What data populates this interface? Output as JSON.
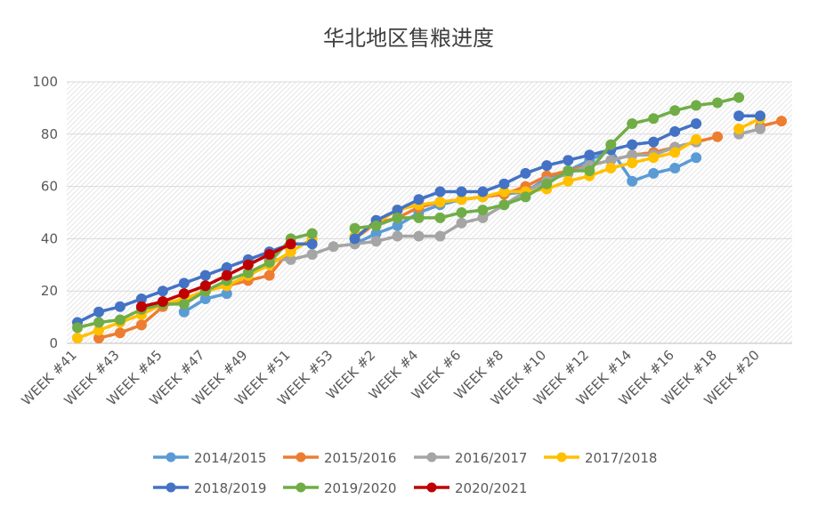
{
  "chart_data": {
    "type": "line",
    "title": "华北地区售粮进度",
    "xlabel": "",
    "ylabel": "",
    "ylim": [
      0,
      100
    ],
    "yticks": [
      0,
      20,
      40,
      60,
      80,
      100
    ],
    "grid": true,
    "legend_position": "bottom",
    "x_tick_labels": [
      "WEEK #41",
      "WEEK #43",
      "WEEK #45",
      "WEEK #47",
      "WEEK #49",
      "WEEK #51",
      "WEEK #53",
      "WEEK #2",
      "WEEK #4",
      "WEEK #6",
      "WEEK #8",
      "WEEK #10",
      "WEEK #12",
      "WEEK #14",
      "WEEK #16",
      "WEEK #18",
      "WEEK #20"
    ],
    "categories": [
      "WEEK #41",
      "WEEK #42",
      "WEEK #43",
      "WEEK #44",
      "WEEK #45",
      "WEEK #46",
      "WEEK #47",
      "WEEK #48",
      "WEEK #49",
      "WEEK #50",
      "WEEK #51",
      "WEEK #52",
      "WEEK #53",
      "WEEK #1",
      "WEEK #2",
      "WEEK #3",
      "WEEK #4",
      "WEEK #5",
      "WEEK #6",
      "WEEK #7",
      "WEEK #8",
      "WEEK #9",
      "WEEK #10",
      "WEEK #11",
      "WEEK #12",
      "WEEK #13",
      "WEEK #14",
      "WEEK #15",
      "WEEK #16",
      "WEEK #17",
      "WEEK #18",
      "WEEK #19",
      "WEEK #20",
      "WEEK #21"
    ],
    "series": [
      {
        "name": "2014/2015",
        "color": "#5B9BD5",
        "values": [
          null,
          null,
          null,
          null,
          null,
          12,
          17,
          19,
          null,
          null,
          null,
          null,
          null,
          38,
          42,
          45,
          50,
          53,
          55,
          56,
          57,
          58,
          63,
          66,
          70,
          74,
          62,
          65,
          67,
          71,
          null,
          null,
          null,
          null
        ]
      },
      {
        "name": "2015/2016",
        "color": "#ED7D31",
        "values": [
          null,
          2,
          4,
          7,
          14,
          17,
          20,
          22,
          24,
          26,
          36,
          null,
          null,
          40,
          46,
          48,
          52,
          54,
          55,
          56,
          57,
          60,
          64,
          66,
          68,
          70,
          72,
          73,
          75,
          77,
          79,
          null,
          83,
          85
        ]
      },
      {
        "name": "2016/2017",
        "color": "#A5A5A5",
        "values": [
          null,
          null,
          null,
          null,
          null,
          null,
          null,
          null,
          null,
          32,
          32,
          34,
          37,
          38,
          39,
          41,
          41,
          41,
          46,
          48,
          53,
          58,
          62,
          65,
          68,
          70,
          72,
          72,
          75,
          77,
          null,
          80,
          82,
          null
        ]
      },
      {
        "name": "2017/2018",
        "color": "#FFC000",
        "values": [
          2,
          5,
          8,
          11,
          15,
          17,
          20,
          22,
          26,
          30,
          35,
          40,
          null,
          41,
          46,
          51,
          53,
          54,
          55,
          56,
          58,
          58,
          59,
          62,
          64,
          67,
          69,
          71,
          73,
          78,
          null,
          82,
          86,
          null
        ]
      },
      {
        "name": "2018/2019",
        "color": "#4472C4",
        "values": [
          8,
          12,
          14,
          17,
          20,
          23,
          26,
          29,
          32,
          35,
          38,
          38,
          null,
          40,
          47,
          51,
          55,
          58,
          58,
          58,
          61,
          65,
          68,
          70,
          72,
          74,
          76,
          77,
          81,
          84,
          null,
          87,
          87,
          null
        ]
      },
      {
        "name": "2019/2020",
        "color": "#70AD47",
        "values": [
          6,
          8,
          9,
          13,
          15,
          15,
          20,
          24,
          27,
          31,
          40,
          42,
          null,
          44,
          45,
          48,
          48,
          48,
          50,
          51,
          53,
          56,
          61,
          66,
          66,
          76,
          84,
          86,
          89,
          91,
          92,
          94,
          null,
          null
        ]
      },
      {
        "name": "2020/2021",
        "color": "#C00000",
        "values": [
          null,
          null,
          null,
          14,
          16,
          19,
          22,
          26,
          30,
          34,
          38,
          null,
          null,
          null,
          null,
          null,
          null,
          null,
          null,
          null,
          null,
          null,
          null,
          null,
          null,
          null,
          null,
          null,
          null,
          null,
          null,
          null,
          null,
          null
        ]
      }
    ]
  }
}
